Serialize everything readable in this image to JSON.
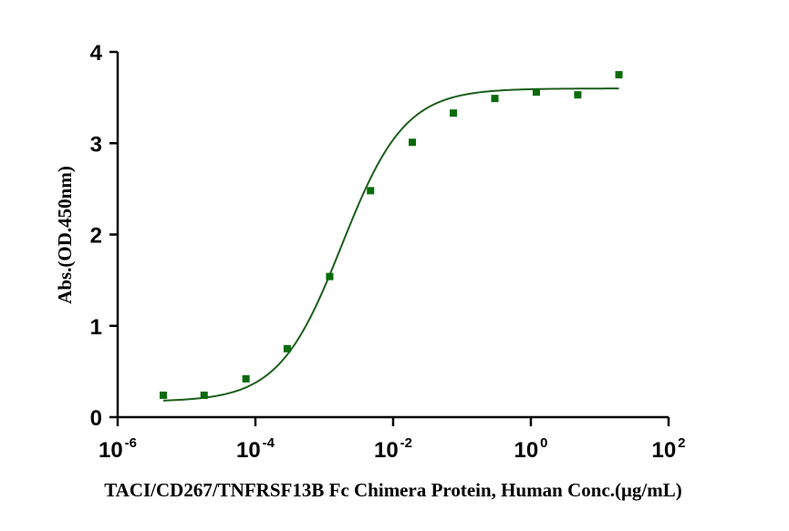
{
  "chart_data": {
    "type": "scatter",
    "title": "",
    "xlabel": "TACI/CD267/TNFRSF13B Fc Chimera Protein, Human Conc.(μg/mL)",
    "ylabel": "Abs.(OD.450nm)",
    "x_scale": "log",
    "xlim": [
      1e-06,
      100
    ],
    "ylim": [
      0,
      4
    ],
    "x_ticks": [
      {
        "base": "10",
        "exp": "-6",
        "value": 1e-06
      },
      {
        "base": "10",
        "exp": "-4",
        "value": 0.0001
      },
      {
        "base": "10",
        "exp": "-2",
        "value": 0.01
      },
      {
        "base": "10",
        "exp": "0",
        "value": 1
      },
      {
        "base": "10",
        "exp": "2",
        "value": 100
      }
    ],
    "y_ticks": [
      "0",
      "1",
      "2",
      "3",
      "4"
    ],
    "grid": false,
    "colors": {
      "marker": "#0a6b0a",
      "curve": "#1d5e1d",
      "axis": "#000000"
    },
    "series": [
      {
        "marker": "square",
        "x": [
          4.6e-06,
          1.8e-05,
          7.3e-05,
          0.00029,
          0.0012,
          0.0047,
          0.019,
          0.075,
          0.3,
          1.2,
          4.8,
          19
        ],
        "y": [
          0.24,
          0.24,
          0.42,
          0.75,
          1.54,
          2.48,
          3.01,
          3.33,
          3.49,
          3.56,
          3.53,
          3.75
        ]
      }
    ],
    "fit_curve": {
      "model": "4PL",
      "bottom": 0.17,
      "top": 3.6,
      "ec50": 0.0018,
      "hill": 0.95,
      "x_range": [
        4.6e-06,
        19
      ]
    }
  }
}
